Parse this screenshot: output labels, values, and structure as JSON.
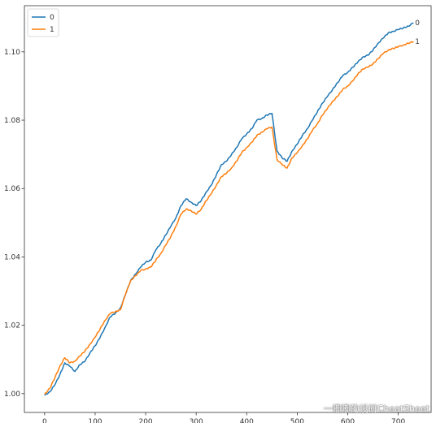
{
  "chart_data": {
    "type": "line",
    "title": "",
    "xlabel": "",
    "ylabel": "",
    "xlim": [
      -40,
      765
    ],
    "ylim": [
      0.9945,
      1.1135
    ],
    "x_ticks": [
      0,
      100,
      200,
      300,
      400,
      500,
      600,
      700
    ],
    "y_ticks": [
      1.0,
      1.02,
      1.04,
      1.06,
      1.08,
      1.1
    ],
    "y_tick_labels": [
      "1.00",
      "1.02",
      "1.04",
      "1.06",
      "1.08",
      "1.10"
    ],
    "grid": false,
    "legend_position": "top-left",
    "series": [
      {
        "name": "0",
        "color": "#1f77b4",
        "end_label": "0",
        "x": [
          0,
          10,
          20,
          30,
          40,
          50,
          60,
          70,
          80,
          90,
          100,
          110,
          120,
          130,
          140,
          150,
          160,
          170,
          180,
          190,
          200,
          210,
          220,
          230,
          240,
          250,
          260,
          270,
          280,
          290,
          300,
          310,
          320,
          330,
          340,
          350,
          360,
          370,
          380,
          390,
          400,
          410,
          420,
          430,
          440,
          450,
          460,
          470,
          480,
          490,
          500,
          510,
          520,
          530,
          540,
          550,
          560,
          570,
          580,
          590,
          600,
          610,
          620,
          630,
          640,
          650,
          660,
          670,
          680,
          690,
          700,
          710,
          720,
          730
        ],
        "values": [
          0.9995,
          1.0005,
          1.0025,
          1.0055,
          1.009,
          1.008,
          1.0065,
          1.0085,
          1.0095,
          1.012,
          1.014,
          1.0165,
          1.0195,
          1.0225,
          1.0235,
          1.025,
          1.029,
          1.033,
          1.035,
          1.037,
          1.0385,
          1.039,
          1.042,
          1.044,
          1.0465,
          1.049,
          1.0515,
          1.055,
          1.057,
          1.056,
          1.055,
          1.0565,
          1.059,
          1.061,
          1.064,
          1.067,
          1.068,
          1.07,
          1.072,
          1.0745,
          1.076,
          1.0775,
          1.08,
          1.0805,
          1.0815,
          1.082,
          1.071,
          1.069,
          1.068,
          1.071,
          1.073,
          1.0755,
          1.0775,
          1.08,
          1.0825,
          1.085,
          1.087,
          1.089,
          1.091,
          1.093,
          1.094,
          1.0955,
          1.097,
          1.0985,
          1.099,
          1.1005,
          1.1025,
          1.104,
          1.1055,
          1.106,
          1.1065,
          1.107,
          1.1075,
          1.1085
        ]
      },
      {
        "name": "1",
        "color": "#ff7f0e",
        "end_label": "1",
        "x": [
          0,
          10,
          20,
          30,
          40,
          50,
          60,
          70,
          80,
          90,
          100,
          110,
          120,
          130,
          140,
          150,
          160,
          170,
          180,
          190,
          200,
          210,
          220,
          230,
          240,
          250,
          260,
          270,
          280,
          290,
          300,
          310,
          320,
          330,
          340,
          350,
          360,
          370,
          380,
          390,
          400,
          410,
          420,
          430,
          440,
          450,
          460,
          470,
          480,
          490,
          500,
          510,
          520,
          530,
          540,
          550,
          560,
          570,
          580,
          590,
          600,
          610,
          620,
          630,
          640,
          650,
          660,
          670,
          680,
          690,
          700,
          710,
          720,
          730
        ],
        "values": [
          0.9998,
          1.0015,
          1.0045,
          1.008,
          1.0105,
          1.009,
          1.0095,
          1.011,
          1.0125,
          1.0145,
          1.0165,
          1.019,
          1.0215,
          1.0235,
          1.024,
          1.0245,
          1.029,
          1.033,
          1.0345,
          1.036,
          1.0365,
          1.037,
          1.039,
          1.041,
          1.0435,
          1.046,
          1.049,
          1.0525,
          1.054,
          1.0535,
          1.0525,
          1.054,
          1.0565,
          1.0585,
          1.061,
          1.0635,
          1.0645,
          1.066,
          1.068,
          1.0705,
          1.072,
          1.0735,
          1.0755,
          1.0765,
          1.0775,
          1.078,
          1.0685,
          1.067,
          1.066,
          1.069,
          1.0705,
          1.0725,
          1.0745,
          1.077,
          1.079,
          1.0815,
          1.0835,
          1.0855,
          1.087,
          1.089,
          1.09,
          1.0915,
          1.0935,
          1.095,
          1.0955,
          1.0965,
          1.098,
          1.0995,
          1.1005,
          1.101,
          1.1015,
          1.102,
          1.1025,
          1.103
        ]
      }
    ]
  },
  "watermark": "一嘟嘟的设研CheatSheet"
}
